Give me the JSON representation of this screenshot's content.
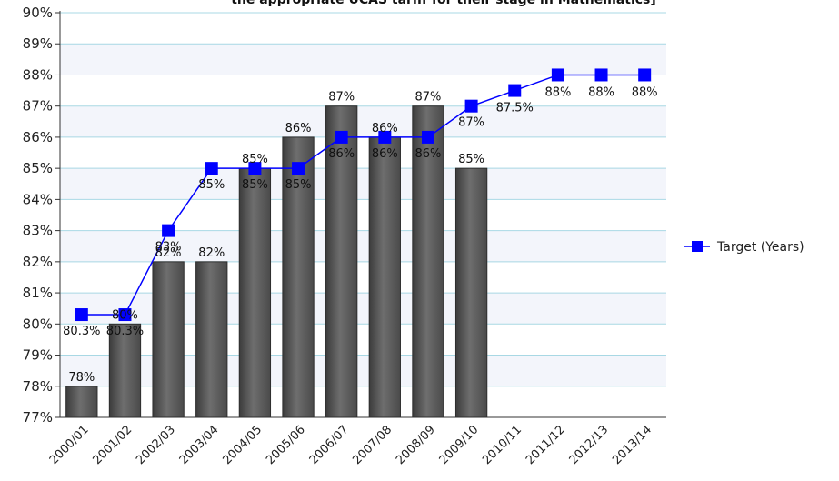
{
  "chart_data": {
    "type": "bar",
    "title": "the appropriate UCAS tariff for their stage in Mathematics]",
    "categories": [
      "2000/01",
      "2001/02",
      "2002/03",
      "2003/04",
      "2004/05",
      "2005/06",
      "2006/07",
      "2007/08",
      "2008/09",
      "2009/10",
      "2010/11",
      "2011/12",
      "2012/13",
      "2013/14"
    ],
    "ylim": [
      77,
      90
    ],
    "yticks": [
      "77%",
      "78%",
      "79%",
      "80%",
      "81%",
      "82%",
      "83%",
      "84%",
      "85%",
      "86%",
      "87%",
      "88%",
      "89%",
      "90%"
    ],
    "grid": true,
    "legend_position": "right",
    "series": [
      {
        "kind": "bar",
        "values": [
          78,
          80,
          82,
          82,
          85,
          86,
          87,
          86,
          87,
          85,
          null,
          null,
          null,
          null
        ],
        "labels": [
          "78%",
          "80%",
          "82%",
          "82%",
          "85%",
          "86%",
          "87%",
          "86%",
          "87%",
          "85%",
          "",
          "",
          "",
          ""
        ],
        "color": "#5a5a5a"
      },
      {
        "kind": "line",
        "name": "Target (Years)",
        "values": [
          80.3,
          80.3,
          83,
          85,
          85,
          85,
          86,
          86,
          86,
          87,
          87.5,
          88,
          88,
          88
        ],
        "labels": [
          "80.3%",
          "80.3%",
          "83%",
          "85%",
          "85%",
          "85%",
          "86%",
          "86%",
          "86%",
          "87%",
          "87.5%",
          "88%",
          "88%",
          "88%"
        ],
        "color": "#0000ff"
      }
    ]
  }
}
